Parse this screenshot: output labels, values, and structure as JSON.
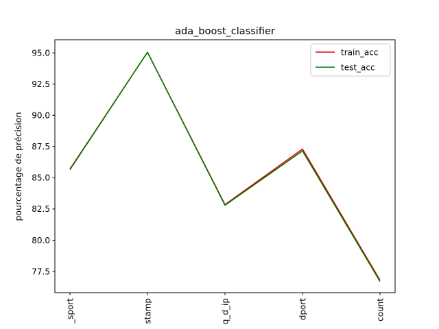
{
  "chart_data": {
    "type": "line",
    "title": "ada_boost_classifier",
    "xlabel": "",
    "ylabel": "pourcentage de précision",
    "categories": [
      "_sport",
      "stamp",
      "q_d_ip",
      "dport",
      "count"
    ],
    "ylim": [
      75.8,
      96.05
    ],
    "yticks": [
      77.5,
      80.0,
      82.5,
      85.0,
      87.5,
      90.0,
      92.5,
      95.0
    ],
    "ytick_labels": [
      "77.5",
      "80.0",
      "82.5",
      "85.0",
      "87.5",
      "90.0",
      "92.5",
      "95.0"
    ],
    "grid": false,
    "legend": "top-right",
    "series": [
      {
        "name": "train_acc",
        "color": "#e00000",
        "values": [
          85.7,
          95.05,
          82.85,
          87.3,
          76.8
        ]
      },
      {
        "name": "test_acc",
        "color": "#007700",
        "values": [
          85.65,
          95.05,
          82.8,
          87.15,
          76.7
        ]
      }
    ]
  }
}
